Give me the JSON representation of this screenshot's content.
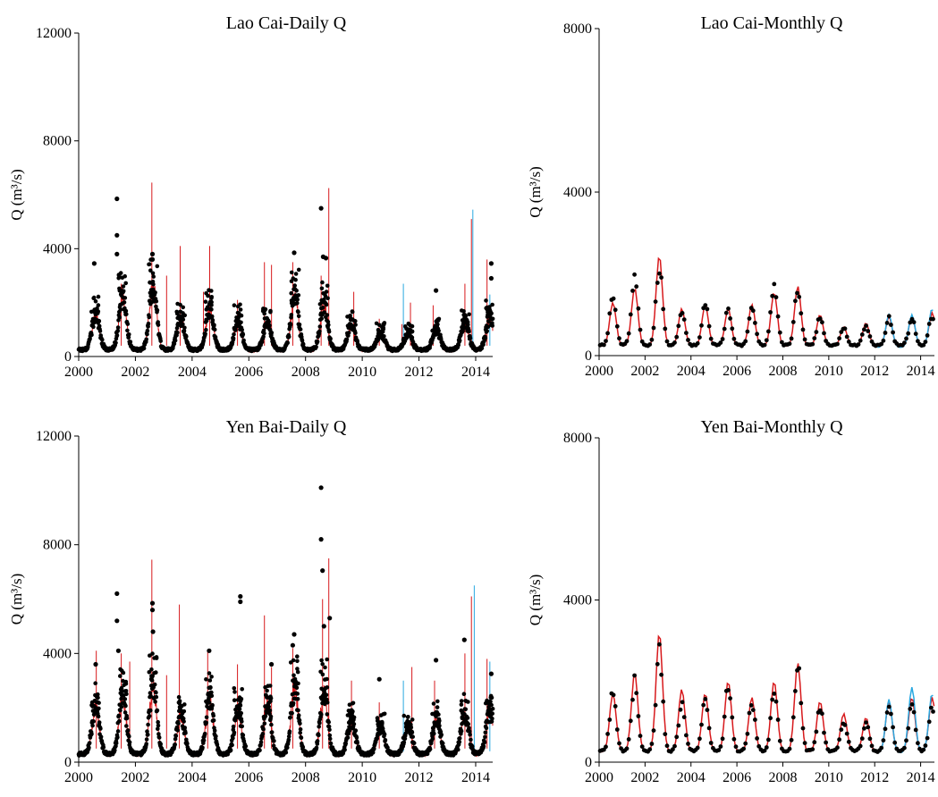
{
  "chart_data": [
    {
      "type": "line",
      "title": "Lao Cai-Daily Q",
      "ylabel": "Q (m³/s)",
      "xlim": [
        2000,
        2014.6
      ],
      "ylim": [
        0,
        12000
      ],
      "xticks": [
        "2000",
        "2002",
        "2004",
        "2006",
        "2008",
        "2010",
        "2012",
        "2014"
      ],
      "yticks": [
        "0",
        "4000",
        "8000",
        "12000"
      ],
      "colors": {
        "line1": "#d7191c",
        "line2": "#29a8e0",
        "points": "#000000"
      },
      "series": [
        {
          "style": "line",
          "color": "#d7191c",
          "base": 200,
          "peaks": [
            [
              2000.6,
              1500
            ],
            [
              2001.55,
              2300
            ],
            [
              2002.62,
              2600
            ],
            [
              2003.6,
              1400
            ],
            [
              2004.62,
              1700
            ],
            [
              2005.62,
              1300
            ],
            [
              2006.65,
              1300
            ],
            [
              2007.62,
              2200
            ],
            [
              2008.65,
              1900
            ],
            [
              2009.62,
              1100
            ],
            [
              2010.65,
              800
            ],
            [
              2011.62,
              800
            ],
            [
              2012.62,
              900
            ],
            [
              2013.62,
              1200
            ],
            [
              2014.5,
              1400
            ]
          ],
          "spikes": [
            [
              2001.5,
              2700
            ],
            [
              2002.58,
              6450
            ],
            [
              2003.1,
              3000
            ],
            [
              2003.58,
              4100
            ],
            [
              2004.4,
              2400
            ],
            [
              2004.62,
              4100
            ],
            [
              2005.6,
              2100
            ],
            [
              2006.55,
              3500
            ],
            [
              2006.8,
              3400
            ],
            [
              2007.55,
              3500
            ],
            [
              2008.55,
              3000
            ],
            [
              2008.82,
              6250
            ],
            [
              2009.7,
              2400
            ],
            [
              2010.6,
              1400
            ],
            [
              2011.4,
              1200
            ],
            [
              2011.7,
              2000
            ],
            [
              2012.5,
              1900
            ],
            [
              2013.62,
              2700
            ],
            [
              2013.85,
              5100
            ],
            [
              2014.4,
              3600
            ]
          ]
        },
        {
          "style": "line",
          "color": "#29a8e0",
          "spikes": [
            [
              2011.45,
              2700
            ],
            [
              2013.9,
              5450
            ],
            [
              2014.5,
              2300
            ]
          ]
        },
        {
          "style": "points",
          "color": "#000000",
          "base": 250,
          "peaks": [
            [
              2000.6,
              1600
            ],
            [
              2001.55,
              2300
            ],
            [
              2002.62,
              2600
            ],
            [
              2003.6,
              1400
            ],
            [
              2004.62,
              1800
            ],
            [
              2005.62,
              1400
            ],
            [
              2006.65,
              1300
            ],
            [
              2007.62,
              2300
            ],
            [
              2008.65,
              2000
            ],
            [
              2009.62,
              1200
            ],
            [
              2010.65,
              900
            ],
            [
              2011.62,
              900
            ],
            [
              2012.62,
              1000
            ],
            [
              2013.62,
              1300
            ],
            [
              2014.5,
              1500
            ]
          ],
          "outliers": [
            [
              2000.55,
              3450
            ],
            [
              2001.35,
              5850
            ],
            [
              2001.35,
              4500
            ],
            [
              2001.35,
              3800
            ],
            [
              2002.6,
              3800
            ],
            [
              2002.6,
              3600
            ],
            [
              2007.6,
              3850
            ],
            [
              2008.55,
              5500
            ],
            [
              2008.62,
              3700
            ],
            [
              2008.72,
              3650
            ],
            [
              2012.6,
              2450
            ],
            [
              2014.55,
              3450
            ],
            [
              2014.55,
              2900
            ]
          ]
        }
      ]
    },
    {
      "type": "line",
      "title": "Lao Cai-Monthly Q",
      "ylabel": "Q (m³/s)",
      "xlim": [
        2000,
        2014.6
      ],
      "ylim": [
        0,
        8000
      ],
      "xticks": [
        "2000",
        "2002",
        "2004",
        "2006",
        "2008",
        "2010",
        "2012",
        "2014"
      ],
      "yticks": [
        "0",
        "4000",
        "8000"
      ],
      "series": [
        {
          "style": "line",
          "color": "#d7191c",
          "base": 230,
          "peaks": [
            [
              2000.6,
              1300
            ],
            [
              2001.55,
              1650
            ],
            [
              2002.62,
              2450
            ],
            [
              2003.6,
              1150
            ],
            [
              2004.62,
              1250
            ],
            [
              2005.62,
              1150
            ],
            [
              2006.65,
              1250
            ],
            [
              2007.62,
              1550
            ],
            [
              2008.65,
              1700
            ],
            [
              2009.62,
              1000
            ],
            [
              2010.65,
              700
            ],
            [
              2011.62,
              800
            ],
            [
              2012.62,
              950
            ],
            [
              2013.62,
              950
            ],
            [
              2014.5,
              1050
            ]
          ]
        },
        {
          "style": "line",
          "color": "#29a8e0",
          "base": 200,
          "peaks": [
            [
              2012.62,
              1000
            ],
            [
              2013.62,
              1000
            ],
            [
              2014.5,
              1150
            ]
          ]
        },
        {
          "style": "points",
          "color": "#000000",
          "base": 250,
          "peaks": [
            [
              2000.6,
              1450
            ],
            [
              2001.55,
              1850
            ],
            [
              2002.62,
              2150
            ],
            [
              2003.6,
              1100
            ],
            [
              2004.62,
              1250
            ],
            [
              2005.62,
              1100
            ],
            [
              2006.65,
              1150
            ],
            [
              2007.62,
              1800
            ],
            [
              2008.65,
              1600
            ],
            [
              2009.62,
              950
            ],
            [
              2010.65,
              650
            ],
            [
              2011.62,
              700
            ],
            [
              2012.62,
              900
            ],
            [
              2013.62,
              900
            ],
            [
              2014.5,
              1000
            ]
          ]
        }
      ]
    },
    {
      "type": "line",
      "title": "Yen Bai-Daily Q",
      "ylabel": "Q (m³/s)",
      "xlim": [
        2000,
        2014.6
      ],
      "ylim": [
        0,
        12000
      ],
      "xticks": [
        "2000",
        "2002",
        "2004",
        "2006",
        "2008",
        "2010",
        "2012",
        "2014"
      ],
      "yticks": [
        "0",
        "4000",
        "8000",
        "12000"
      ],
      "series": [
        {
          "style": "line",
          "color": "#d7191c",
          "base": 250,
          "peaks": [
            [
              2000.6,
              2000
            ],
            [
              2001.55,
              2400
            ],
            [
              2002.62,
              2800
            ],
            [
              2003.6,
              1700
            ],
            [
              2004.62,
              2300
            ],
            [
              2005.62,
              1900
            ],
            [
              2006.65,
              2100
            ],
            [
              2007.62,
              2700
            ],
            [
              2008.65,
              2600
            ],
            [
              2009.62,
              1500
            ],
            [
              2010.65,
              1200
            ],
            [
              2011.62,
              1300
            ],
            [
              2012.62,
              1500
            ],
            [
              2013.62,
              1700
            ],
            [
              2014.5,
              1800
            ]
          ],
          "spikes": [
            [
              2000.62,
              4100
            ],
            [
              2001.5,
              4000
            ],
            [
              2001.8,
              3700
            ],
            [
              2002.58,
              7450
            ],
            [
              2003.1,
              3200
            ],
            [
              2003.55,
              5800
            ],
            [
              2004.55,
              4100
            ],
            [
              2005.6,
              3600
            ],
            [
              2006.55,
              5400
            ],
            [
              2006.8,
              3500
            ],
            [
              2007.55,
              4200
            ],
            [
              2008.6,
              6000
            ],
            [
              2008.82,
              7500
            ],
            [
              2009.62,
              3000
            ],
            [
              2010.6,
              2200
            ],
            [
              2011.75,
              3500
            ],
            [
              2012.55,
              3000
            ],
            [
              2013.62,
              4000
            ],
            [
              2013.85,
              6100
            ],
            [
              2014.4,
              3800
            ]
          ]
        },
        {
          "style": "line",
          "color": "#29a8e0",
          "spikes": [
            [
              2011.45,
              3000
            ],
            [
              2013.95,
              6500
            ],
            [
              2014.5,
              3700
            ]
          ]
        },
        {
          "style": "points",
          "color": "#000000",
          "base": 300,
          "peaks": [
            [
              2000.6,
              2100
            ],
            [
              2001.55,
              2500
            ],
            [
              2002.62,
              2900
            ],
            [
              2003.6,
              1800
            ],
            [
              2004.62,
              2400
            ],
            [
              2005.62,
              2000
            ],
            [
              2006.65,
              2200
            ],
            [
              2007.62,
              2800
            ],
            [
              2008.65,
              2700
            ],
            [
              2009.62,
              1600
            ],
            [
              2010.65,
              1300
            ],
            [
              2011.62,
              1400
            ],
            [
              2012.62,
              1600
            ],
            [
              2013.62,
              1800
            ],
            [
              2014.5,
              1900
            ]
          ],
          "outliers": [
            [
              2000.6,
              3600
            ],
            [
              2001.35,
              6200
            ],
            [
              2001.35,
              5200
            ],
            [
              2001.4,
              4100
            ],
            [
              2002.6,
              5850
            ],
            [
              2002.6,
              5600
            ],
            [
              2002.62,
              4800
            ],
            [
              2004.6,
              4100
            ],
            [
              2005.7,
              6100
            ],
            [
              2005.7,
              5900
            ],
            [
              2006.8,
              3600
            ],
            [
              2007.6,
              4700
            ],
            [
              2007.55,
              4300
            ],
            [
              2008.55,
              10100
            ],
            [
              2008.55,
              8200
            ],
            [
              2008.6,
              7050
            ],
            [
              2008.65,
              5000
            ],
            [
              2008.85,
              5300
            ],
            [
              2010.6,
              3050
            ],
            [
              2012.6,
              3750
            ],
            [
              2013.6,
              4500
            ],
            [
              2014.55,
              3250
            ]
          ]
        }
      ]
    },
    {
      "type": "line",
      "title": "Yen Bai-Monthly Q",
      "ylabel": "Q (m³/s)",
      "xlim": [
        2000,
        2014.6
      ],
      "ylim": [
        0,
        8000
      ],
      "xticks": [
        "2000",
        "2002",
        "2004",
        "2006",
        "2008",
        "2010",
        "2012",
        "2014"
      ],
      "yticks": [
        "0",
        "4000",
        "8000"
      ],
      "series": [
        {
          "style": "line",
          "color": "#d7191c",
          "base": 250,
          "peaks": [
            [
              2000.6,
              1700
            ],
            [
              2001.55,
              2200
            ],
            [
              2002.62,
              3200
            ],
            [
              2003.6,
              1800
            ],
            [
              2004.62,
              1700
            ],
            [
              2005.62,
              2000
            ],
            [
              2006.65,
              1600
            ],
            [
              2007.62,
              2000
            ],
            [
              2008.65,
              2450
            ],
            [
              2009.62,
              1500
            ],
            [
              2010.65,
              1200
            ],
            [
              2011.62,
              1100
            ],
            [
              2012.62,
              1500
            ],
            [
              2013.62,
              1600
            ],
            [
              2014.5,
              1600
            ]
          ]
        },
        {
          "style": "line",
          "color": "#29a8e0",
          "base": 230,
          "peaks": [
            [
              2012.62,
              1550
            ],
            [
              2013.62,
              1850
            ],
            [
              2014.5,
              1700
            ]
          ]
        },
        {
          "style": "points",
          "color": "#000000",
          "base": 270,
          "peaks": [
            [
              2000.6,
              1700
            ],
            [
              2001.55,
              2000
            ],
            [
              2002.62,
              2700
            ],
            [
              2003.6,
              1400
            ],
            [
              2004.62,
              1500
            ],
            [
              2005.62,
              1900
            ],
            [
              2006.65,
              1500
            ],
            [
              2007.62,
              1800
            ],
            [
              2008.65,
              2400
            ],
            [
              2009.62,
              1300
            ],
            [
              2010.65,
              1000
            ],
            [
              2011.62,
              950
            ],
            [
              2012.62,
              1400
            ],
            [
              2013.62,
              1500
            ],
            [
              2014.5,
              1300
            ]
          ]
        }
      ]
    }
  ]
}
